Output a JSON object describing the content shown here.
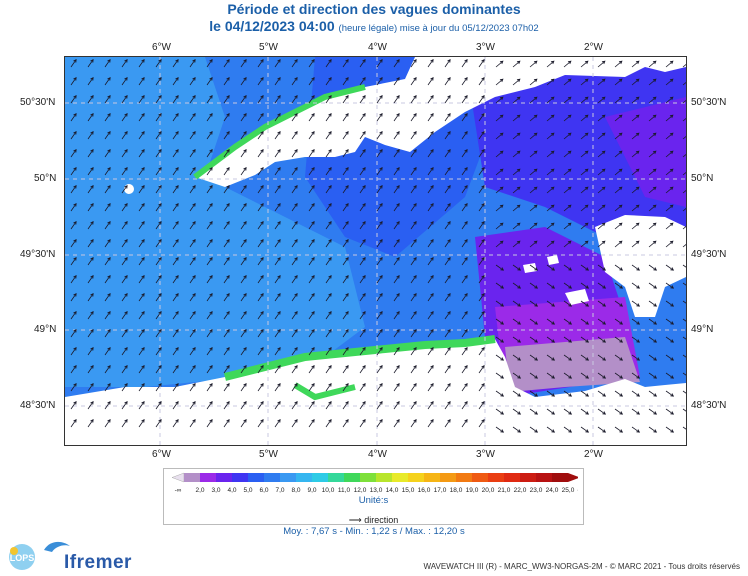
{
  "header": {
    "title": "Période et direction des vagues dominantes",
    "date": "le 04/12/2023 04:00",
    "update_note": "(heure légale) mise à jour du 05/12/2023 07h02"
  },
  "map": {
    "lon_labels": [
      "6°W",
      "5°W",
      "4°W",
      "3°W",
      "2°W"
    ],
    "lat_labels": [
      "50°30'N",
      "50°N",
      "49°30'N",
      "49°N",
      "48°30'N"
    ],
    "colors": {
      "sea_main": "#2f7cf0",
      "sea_light": "#3a99f2",
      "sea_deep": "#1d5df0",
      "sea_violet": "#6a38ec",
      "sea_purple": "#9b2ae8",
      "land": "#ffffff",
      "coast_green": "#3fd85a",
      "gray_zone": "#a990bb"
    }
  },
  "legend": {
    "values": [
      "2,0",
      "3,0",
      "4,0",
      "5,0",
      "6,0",
      "7,0",
      "8,0",
      "9,0",
      "10,0",
      "11,0",
      "12,0",
      "13,0",
      "14,0",
      "15,0",
      "16,0",
      "17,0",
      "18,0",
      "19,0",
      "20,0",
      "21,0",
      "22,0",
      "23,0",
      "24,0",
      "25,0"
    ],
    "colors": [
      "#b38fc8",
      "#9b2ae8",
      "#6a24ee",
      "#3f35f2",
      "#2a5ff2",
      "#2f7cf0",
      "#3a99f2",
      "#35b6f0",
      "#2ecbe6",
      "#34d89a",
      "#3fd85a",
      "#7ee03a",
      "#b8e52c",
      "#e8ea2a",
      "#f5d21c",
      "#f6b515",
      "#f49a14",
      "#f27a12",
      "#ef5a12",
      "#ea3e12",
      "#e02a12",
      "#cc1c12",
      "#b81212",
      "#a00d0d"
    ],
    "left_symbol": "-∞",
    "right_symbol": "∞",
    "unit_label": "Unité:s",
    "direction_label": "direction"
  },
  "stats": {
    "text": "Moy. : 7,67 s   -   Min. : 1,22 s / Max. : 12,20 s"
  },
  "footer": {
    "credit": "WAVEWATCH III (R) - MARC_WW3-NORGAS-2M - © MARC 2021 - Tous droits réservés",
    "logo_lops": "LOPS",
    "logo_ifremer": "Ifremer"
  }
}
